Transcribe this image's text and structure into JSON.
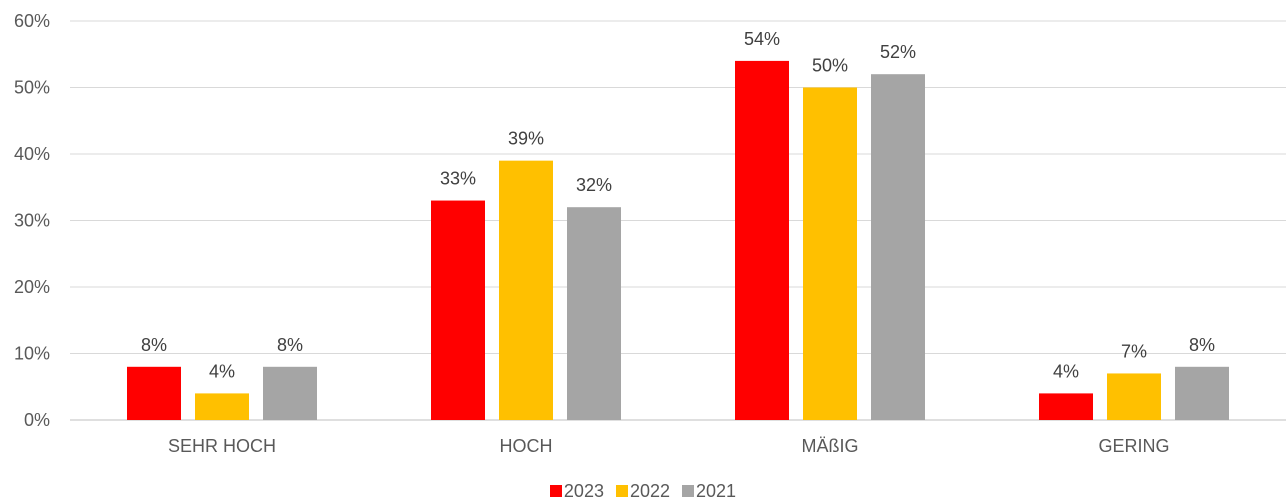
{
  "chart_data": {
    "type": "bar",
    "categories": [
      "SEHR HOCH",
      "HOCH",
      "MÄßIG",
      "GERING"
    ],
    "series": [
      {
        "name": "2023",
        "color": "#ff0000",
        "values": [
          8,
          33,
          54,
          4
        ],
        "labels": [
          "8%",
          "33%",
          "54%",
          "4%"
        ]
      },
      {
        "name": "2022",
        "color": "#ffc000",
        "values": [
          4,
          39,
          50,
          7
        ],
        "labels": [
          "4%",
          "39%",
          "50%",
          "7%"
        ]
      },
      {
        "name": "2021",
        "color": "#a5a5a5",
        "values": [
          8,
          32,
          52,
          8
        ],
        "labels": [
          "8%",
          "32%",
          "52%",
          "8%"
        ]
      }
    ],
    "ylim": [
      0,
      60
    ],
    "yticks": [
      0,
      10,
      20,
      30,
      40,
      50,
      60
    ],
    "ytick_labels": [
      "0%",
      "10%",
      "20%",
      "30%",
      "40%",
      "50%",
      "60%"
    ],
    "grid": true,
    "gridline_color": "#d9d9d9",
    "legend_position": "bottom"
  }
}
